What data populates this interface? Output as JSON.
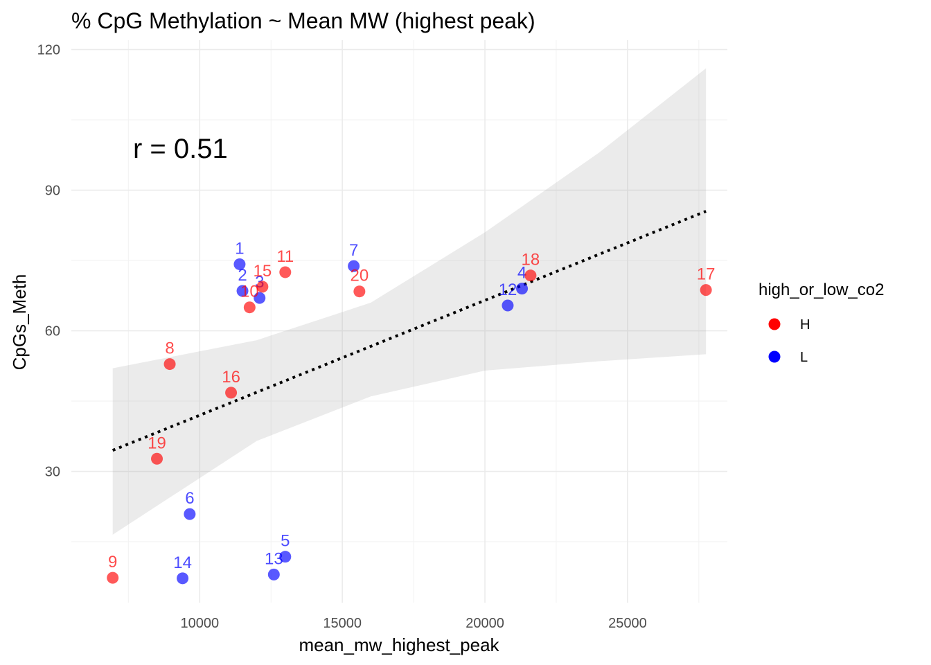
{
  "chart_data": {
    "type": "scatter",
    "title": "% CpG Methylation ~ Mean MW (highest peak)",
    "xlabel": "mean_mw_highest_peak",
    "ylabel": "CpGs_Meth",
    "xlim": [
      5500,
      28500
    ],
    "ylim": [
      2,
      122
    ],
    "xticks": [
      10000,
      15000,
      20000,
      25000
    ],
    "yticks": [
      30,
      60,
      90,
      120
    ],
    "grid": true,
    "annotation": "r = 0.51",
    "legend": {
      "title": "high_or_low_co2",
      "position": "right",
      "entries": [
        {
          "label": "H",
          "color": "#ff0000"
        },
        {
          "label": "L",
          "color": "#0000ff"
        }
      ]
    },
    "colors": {
      "H": "#ff0000",
      "L": "#0000ff"
    },
    "points": [
      {
        "label": "1",
        "group": "L",
        "x": 11400,
        "y": 74.2
      },
      {
        "label": "2",
        "group": "L",
        "x": 11500,
        "y": 68.5
      },
      {
        "label": "3",
        "group": "L",
        "x": 12100,
        "y": 67.0
      },
      {
        "label": "4",
        "group": "L",
        "x": 21300,
        "y": 69.0
      },
      {
        "label": "5",
        "group": "L",
        "x": 13000,
        "y": 11.8
      },
      {
        "label": "6",
        "group": "L",
        "x": 9650,
        "y": 20.9
      },
      {
        "label": "7",
        "group": "L",
        "x": 15400,
        "y": 73.8
      },
      {
        "label": "8",
        "group": "H",
        "x": 8950,
        "y": 52.9
      },
      {
        "label": "9",
        "group": "H",
        "x": 6950,
        "y": 7.3
      },
      {
        "label": "10",
        "group": "H",
        "x": 11750,
        "y": 65.0
      },
      {
        "label": "11",
        "group": "H",
        "x": 13000,
        "y": 72.5
      },
      {
        "label": "12",
        "group": "L",
        "x": 20800,
        "y": 65.4
      },
      {
        "label": "13",
        "group": "L",
        "x": 12600,
        "y": 8.0
      },
      {
        "label": "14",
        "group": "L",
        "x": 9400,
        "y": 7.2
      },
      {
        "label": "15",
        "group": "H",
        "x": 12200,
        "y": 69.4
      },
      {
        "label": "16",
        "group": "H",
        "x": 11100,
        "y": 46.8
      },
      {
        "label": "17",
        "group": "H",
        "x": 27750,
        "y": 68.7
      },
      {
        "label": "18",
        "group": "H",
        "x": 21600,
        "y": 71.8
      },
      {
        "label": "19",
        "group": "H",
        "x": 8500,
        "y": 32.7
      },
      {
        "label": "20",
        "group": "H",
        "x": 15600,
        "y": 68.4
      }
    ],
    "fit": {
      "x": [
        6950,
        27750
      ],
      "y": [
        34.5,
        85.5
      ]
    },
    "confidence_band": {
      "x": [
        6950,
        12000,
        16000,
        20000,
        24000,
        27750
      ],
      "lower": [
        16.5,
        36.5,
        46.0,
        51.5,
        53.5,
        55.0
      ],
      "upper": [
        52.0,
        58.0,
        66.0,
        81.0,
        98.0,
        116.0
      ]
    }
  }
}
